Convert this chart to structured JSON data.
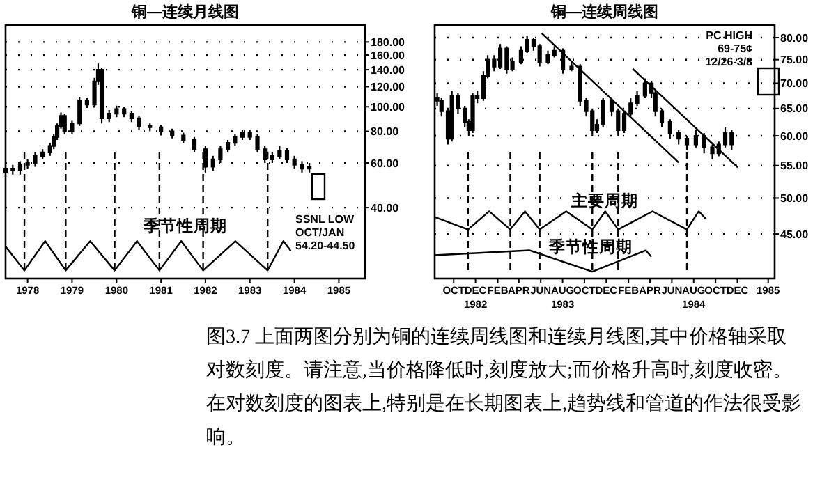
{
  "chart_data": [
    {
      "type": "candlestick",
      "title": "铜—连续月线图",
      "color": "#000000",
      "log": true,
      "grid": "y",
      "ylim": [
        21,
        210
      ],
      "yticks": [
        {
          "value": 180,
          "label": "180.00"
        },
        {
          "value": 160,
          "label": "160.00"
        },
        {
          "value": 140,
          "label": "140.00"
        },
        {
          "value": 120,
          "label": "120.00"
        },
        {
          "value": 100,
          "label": "100.00"
        },
        {
          "value": 80,
          "label": "80.00"
        },
        {
          "value": 60,
          "label": "60.00"
        },
        {
          "value": 40,
          "label": "40.00"
        }
      ],
      "xlim": [
        "1978-01-01",
        "1986-02-01"
      ],
      "xticks": [
        {
          "value": "1978-07-01",
          "label": "1978"
        },
        {
          "value": "1979-07-01",
          "label": "1979"
        },
        {
          "value": "1980-07-01",
          "label": "1980"
        },
        {
          "value": "1981-07-01",
          "label": "1981"
        },
        {
          "value": "1982-07-01",
          "label": "1982"
        },
        {
          "value": "1983-07-01",
          "label": "1983"
        },
        {
          "value": "1984-07-01",
          "label": "1984"
        },
        {
          "value": "1985-07-01",
          "label": "1985"
        }
      ],
      "x": [
        "1978-01",
        "1978-03",
        "1978-05",
        "1978-07",
        "1978-09",
        "1978-11",
        "1979-01",
        "1979-02",
        "1979-03",
        "1979-04",
        "1979-05",
        "1979-07",
        "1979-09",
        "1979-11",
        "1980-01",
        "1980-02",
        "1980-03",
        "1980-05",
        "1980-07",
        "1980-09",
        "1980-11",
        "1981-01",
        "1981-04",
        "1981-07",
        "1981-10",
        "1982-01",
        "1982-04",
        "1982-07",
        "1982-09",
        "1982-11",
        "1983-01",
        "1983-03",
        "1983-05",
        "1983-07",
        "1983-09",
        "1983-11",
        "1984-01",
        "1984-03",
        "1984-05",
        "1984-07",
        "1984-09",
        "1984-11"
      ],
      "ohlc": [
        [
          55,
          59,
          53,
          57
        ],
        [
          57,
          59,
          54,
          56
        ],
        [
          56,
          61,
          54,
          59
        ],
        [
          59,
          62,
          57,
          60
        ],
        [
          60,
          66,
          58,
          64
        ],
        [
          64,
          68,
          62,
          66
        ],
        [
          66,
          72,
          64,
          70
        ],
        [
          70,
          78,
          68,
          76
        ],
        [
          76,
          86,
          74,
          84
        ],
        [
          84,
          95,
          82,
          92
        ],
        [
          92,
          94,
          78,
          80
        ],
        [
          80,
          88,
          78,
          86
        ],
        [
          86,
          109,
          84,
          106
        ],
        [
          106,
          108,
          99,
          102
        ],
        [
          102,
          130,
          100,
          126
        ],
        [
          126,
          148,
          122,
          140
        ],
        [
          140,
          142,
          86,
          90
        ],
        [
          90,
          97,
          87,
          94
        ],
        [
          94,
          101,
          91,
          98
        ],
        [
          98,
          100,
          91,
          94
        ],
        [
          94,
          96,
          87,
          90
        ],
        [
          90,
          92,
          81,
          84
        ],
        [
          84,
          86,
          80,
          83
        ],
        [
          83,
          85,
          77,
          80
        ],
        [
          80,
          82,
          75,
          77
        ],
        [
          77,
          79,
          72,
          74
        ],
        [
          74,
          76,
          66,
          68
        ],
        [
          68,
          70,
          55,
          58
        ],
        [
          58,
          64,
          56,
          62
        ],
        [
          62,
          70,
          60,
          68
        ],
        [
          68,
          74,
          66,
          72
        ],
        [
          72,
          78,
          70,
          76
        ],
        [
          76,
          81,
          74,
          79
        ],
        [
          79,
          81,
          74,
          76
        ],
        [
          76,
          78,
          66,
          68
        ],
        [
          68,
          70,
          60,
          62
        ],
        [
          62,
          66,
          60,
          64
        ],
        [
          64,
          70,
          62,
          67
        ],
        [
          67,
          69,
          60,
          62
        ],
        [
          62,
          64,
          57,
          59
        ],
        [
          59,
          61,
          55,
          57
        ],
        [
          57,
          60,
          55,
          58
        ]
      ],
      "ref_lines": [
        {
          "axis": "x",
          "value": "1978-06-05",
          "line_style": "dashed"
        },
        {
          "axis": "x",
          "value": "1979-05-10",
          "line_style": "dashed"
        },
        {
          "axis": "x",
          "value": "1980-06-15",
          "line_style": "dashed"
        },
        {
          "axis": "x",
          "value": "1981-06-18",
          "line_style": "dashed"
        },
        {
          "axis": "x",
          "value": "1982-06-12",
          "line_style": "dashed"
        },
        {
          "axis": "x",
          "value": "1983-11-24",
          "line_style": "dashed"
        }
      ],
      "series": [
        {
          "type": "line",
          "color": "#000000",
          "x": [
            "1978-01-01",
            "1978-06-05",
            "1978-11-22",
            "1979-05-10",
            "1979-11-27",
            "1980-06-15",
            "1980-12-16",
            "1981-06-18",
            "1981-12-14",
            "1982-06-12",
            "1983-03-04",
            "1983-11-24",
            "1984-04-01",
            "1984-06-01"
          ],
          "values": [
            28.1,
            22.6,
            29.5,
            22.6,
            29.5,
            22.6,
            29.5,
            22.6,
            29.5,
            22.6,
            29.5,
            22.6,
            29.5,
            27
          ]
        }
      ],
      "annotations": [
        "季节性周期",
        "SSNL LOW\nOCT/JAN\n54.20-44.50"
      ]
    },
    {
      "type": "candlestick",
      "title": "铜—连续周线图",
      "color": "#000000",
      "log": true,
      "grid": "y",
      "ylim": [
        39.5,
        83
      ],
      "yticks": [
        {
          "value": 80,
          "label": "80.00"
        },
        {
          "value": 75,
          "label": "75.00"
        },
        {
          "value": 70,
          "label": "70.00"
        },
        {
          "value": 65,
          "label": "65.00"
        },
        {
          "value": 60,
          "label": "60.00"
        },
        {
          "value": 55,
          "label": "55.00"
        },
        {
          "value": 50,
          "label": "50.00"
        },
        {
          "value": 45,
          "label": "45.00"
        }
      ],
      "xlim": [
        "1982-08-09",
        "1985-03-15"
      ],
      "xticks": [
        {
          "value": "1982-10-01",
          "label": "OCT"
        },
        {
          "value": "1982-12-01",
          "label": "DEC\n1982"
        },
        {
          "value": "1983-02-01",
          "label": "FEB"
        },
        {
          "value": "1983-04-01",
          "label": "APR"
        },
        {
          "value": "1983-06-01",
          "label": "JUN"
        },
        {
          "value": "1983-08-01",
          "label": "AUG\n1983"
        },
        {
          "value": "1983-10-01",
          "label": "OCT"
        },
        {
          "value": "1983-12-01",
          "label": "DEC"
        },
        {
          "value": "1984-02-01",
          "label": "FEB"
        },
        {
          "value": "1984-04-01",
          "label": "APR"
        },
        {
          "value": "1984-06-01",
          "label": "JUN"
        },
        {
          "value": "1984-08-01",
          "label": "AUG\n1984"
        },
        {
          "value": "1984-10-01",
          "label": "OCT"
        },
        {
          "value": "1984-12-01",
          "label": "DEC"
        },
        {
          "value": "1985-02-25",
          "label": "1985"
        }
      ],
      "x": [
        "1982-08-16",
        "1982-08-28",
        "1982-09-15",
        "1982-09-26",
        "1982-10-13",
        "1982-11-01",
        "1982-11-12",
        "1982-11-23",
        "1982-12-06",
        "1982-12-23",
        "1983-01-04",
        "1983-01-22",
        "1983-02-08",
        "1983-02-26",
        "1983-03-14",
        "1983-04-07",
        "1983-04-24",
        "1983-05-12",
        "1983-05-29",
        "1983-06-21",
        "1983-07-09",
        "1983-08-02",
        "1983-08-26",
        "1983-09-19",
        "1983-10-06",
        "1983-10-23",
        "1983-11-05",
        "1983-11-22",
        "1983-12-16",
        "1984-01-03",
        "1984-01-20",
        "1984-02-07",
        "1984-02-25",
        "1984-03-18",
        "1984-04-05",
        "1984-04-16",
        "1984-05-04",
        "1984-05-27",
        "1984-06-20",
        "1984-07-13",
        "1984-08-07",
        "1984-08-30",
        "1984-09-22",
        "1984-10-10",
        "1984-10-28",
        "1984-11-15"
      ],
      "ohlc": [
        [
          67,
          68,
          65.5,
          66.5
        ],
        [
          66.5,
          67,
          63.5,
          64.5
        ],
        [
          64.5,
          65,
          58.5,
          59.5
        ],
        [
          59.5,
          68.5,
          59,
          67.5
        ],
        [
          67.5,
          68,
          64,
          65
        ],
        [
          65,
          65.5,
          61.5,
          62.5
        ],
        [
          62.5,
          63,
          60,
          61
        ],
        [
          61,
          68,
          60.5,
          67.5
        ],
        [
          67.5,
          68.5,
          66,
          67
        ],
        [
          67,
          72.5,
          66.5,
          71.5
        ],
        [
          71.5,
          76,
          71,
          75
        ],
        [
          75,
          76,
          72.5,
          73.5
        ],
        [
          73.5,
          78.5,
          73,
          77.5
        ],
        [
          77.5,
          78,
          72,
          73
        ],
        [
          73,
          75.5,
          72.5,
          74.5
        ],
        [
          74.5,
          78,
          74,
          77
        ],
        [
          77,
          80.5,
          76.5,
          79.5
        ],
        [
          79.5,
          80,
          77,
          78
        ],
        [
          78,
          78.5,
          73.5,
          74.5
        ],
        [
          74.5,
          77,
          74,
          76
        ],
        [
          76,
          78,
          75.5,
          77
        ],
        [
          77,
          77.5,
          72,
          73
        ],
        [
          73,
          74.5,
          72.5,
          73.5
        ],
        [
          73.5,
          74,
          65.5,
          66.5
        ],
        [
          66.5,
          67,
          63.5,
          64.5
        ],
        [
          64.5,
          65,
          60,
          61
        ],
        [
          61,
          63,
          60.5,
          62
        ],
        [
          62,
          67,
          61.5,
          66.5
        ],
        [
          66.5,
          67,
          63.5,
          64.5
        ],
        [
          64.5,
          65,
          60,
          61
        ],
        [
          61,
          64.5,
          60.5,
          64
        ],
        [
          64,
          67,
          63.5,
          66
        ],
        [
          66,
          68.5,
          65.5,
          67.5
        ],
        [
          67.5,
          71,
          67,
          70
        ],
        [
          70,
          70.5,
          67,
          68
        ],
        [
          68,
          68.5,
          63.5,
          64.5
        ],
        [
          64.5,
          65,
          61.5,
          62.5
        ],
        [
          62.5,
          63,
          59.5,
          60.5
        ],
        [
          60.5,
          61,
          58.5,
          59.5
        ],
        [
          59.5,
          60,
          57.5,
          58.5
        ],
        [
          58.5,
          61,
          58,
          60
        ],
        [
          60,
          60.5,
          57,
          58
        ],
        [
          58,
          58.5,
          56,
          57
        ],
        [
          57,
          59,
          56.5,
          58.5
        ],
        [
          58.5,
          61.5,
          58,
          60.5
        ],
        [
          60.5,
          61,
          57.5,
          58.5
        ]
      ],
      "series": [
        {
          "type": "line",
          "color": "#000000",
          "x": [
            "1983-06-04",
            "1984-06-20"
          ],
          "values": [
            81,
            55.5
          ]
        },
        {
          "type": "line",
          "color": "#000000",
          "x": [
            "1984-02-13",
            "1984-12-02"
          ],
          "values": [
            73,
            54.7
          ]
        },
        {
          "type": "line",
          "color": "#000000",
          "x": [
            "1982-08-09",
            "1982-11-10",
            "1983-01-08",
            "1983-03-08",
            "1983-04-18",
            "1983-05-29",
            "1983-08-11",
            "1983-10-23",
            "1983-11-28",
            "1984-01-03",
            "1984-04-08",
            "1984-07-13",
            "1984-08-15",
            "1984-09-05"
          ],
          "values": [
            47.3,
            45.6,
            48.1,
            45.6,
            48.1,
            45.6,
            48.1,
            45.6,
            48.1,
            45.6,
            48.1,
            45.6,
            48.1,
            47
          ]
        },
        {
          "type": "line",
          "color": "#000000",
          "x": [
            "1982-08-09",
            "1983-05-01",
            "1983-10-23",
            "1984-03-20",
            "1984-04-05"
          ],
          "values": [
            42.3,
            42.9,
            40.3,
            42.9,
            42.1
          ]
        }
      ],
      "ref_lines": [
        {
          "axis": "x",
          "value": "1982-11-10",
          "line_style": "dashed"
        },
        {
          "axis": "x",
          "value": "1983-03-08",
          "line_style": "dashed"
        },
        {
          "axis": "x",
          "value": "1983-05-29",
          "line_style": "dashed"
        },
        {
          "axis": "x",
          "value": "1983-10-23",
          "line_style": "dashed"
        },
        {
          "axis": "x",
          "value": "1984-01-03",
          "line_style": "dashed"
        },
        {
          "axis": "x",
          "value": "1984-07-13",
          "line_style": "dashed"
        }
      ],
      "annotations": [
        "PC HIGH\n69-75¢\n12/26-3/8",
        "主要周期",
        "季节性周期"
      ]
    },
    {
      "type": "other",
      "annotations": [
        "图3.7 上面两图分别为铜的连续周线图和连续月线图,其中价格轴采取对数刻度。请注意,当价格降低时,刻度放大;而价格升高时,刻度收密。在对数刻度的图表上,特别是在长期图表上,趋势线和管道的作法很受影响。"
      ]
    }
  ]
}
